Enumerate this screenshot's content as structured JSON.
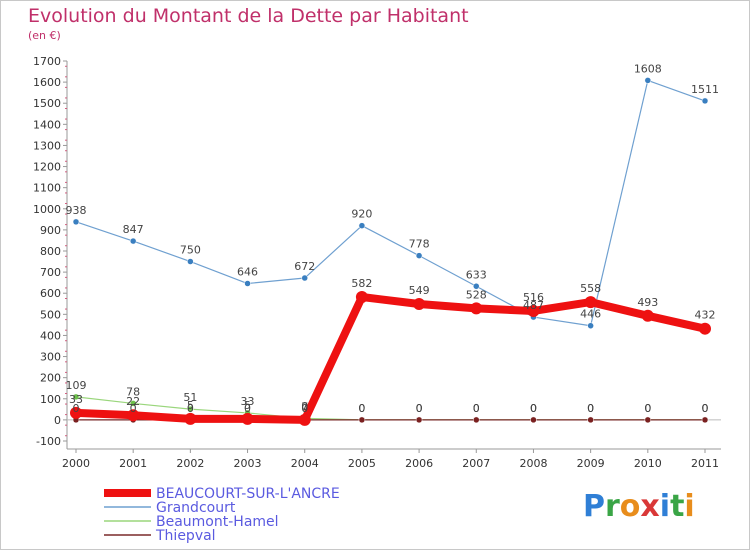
{
  "header": {
    "title": "Evolution du Montant de la Dette par Habitant",
    "subtitle": "(en €)"
  },
  "brand": {
    "logo_text": "Proxiti",
    "letter_colors": [
      "#2f7fd6",
      "#3aa546",
      "#e88d1c",
      "#d93838",
      "#2f7fd6",
      "#3aa546",
      "#e88d1c"
    ]
  },
  "chart_data": {
    "type": "line",
    "title": "Evolution du Montant de la Dette par Habitant",
    "subtitle": "(en €)",
    "xlabel": "",
    "ylabel": "",
    "x": [
      "2000",
      "2001",
      "2002",
      "2003",
      "2004",
      "2005",
      "2006",
      "2007",
      "2008",
      "2009",
      "2010",
      "2011"
    ],
    "ylim": [
      -100,
      1700
    ],
    "yticks": [
      -100,
      0,
      100,
      200,
      300,
      400,
      500,
      600,
      700,
      800,
      900,
      1000,
      1100,
      1200,
      1300,
      1400,
      1500,
      1600,
      1700
    ],
    "grid": false,
    "legend_position": "bottom-left",
    "series": [
      {
        "name": "Grandcourt",
        "color": "#6fa0d0",
        "marker": "#3a7fc0",
        "width": 1.2,
        "labels": true,
        "values": [
          938,
          847,
          750,
          646,
          672,
          920,
          778,
          633,
          487,
          446,
          1608,
          1511
        ]
      },
      {
        "name": "Beaumont-Hamel",
        "color": "#9ad67c",
        "marker": "#6cc04a",
        "width": 1.2,
        "labels": true,
        "values": [
          109,
          78,
          51,
          33,
          7,
          0,
          0,
          0,
          0,
          0,
          0,
          0
        ]
      },
      {
        "name": "Thiepval",
        "color": "#7a2a2a",
        "marker": "#7a2020",
        "width": 1.2,
        "labels": true,
        "values": [
          0,
          0,
          0,
          0,
          0,
          0,
          0,
          0,
          0,
          0,
          0,
          0
        ]
      },
      {
        "name": "BEAUCOURT-SUR-L'ANCRE",
        "color": "#ee1111",
        "marker": "#ee1111",
        "width": 8,
        "labels": true,
        "values": [
          33,
          22,
          5,
          5,
          0,
          582,
          549,
          528,
          516,
          558,
          493,
          432
        ]
      }
    ],
    "legend": [
      {
        "name": "BEAUCOURT-SUR-L'ANCRE",
        "color": "#ee1111",
        "thick": true
      },
      {
        "name": "Grandcourt",
        "color": "#6fa0d0",
        "thick": false
      },
      {
        "name": "Beaumont-Hamel",
        "color": "#9ad67c",
        "thick": false
      },
      {
        "name": "Thiepval",
        "color": "#7a2a2a",
        "thick": false
      }
    ]
  }
}
